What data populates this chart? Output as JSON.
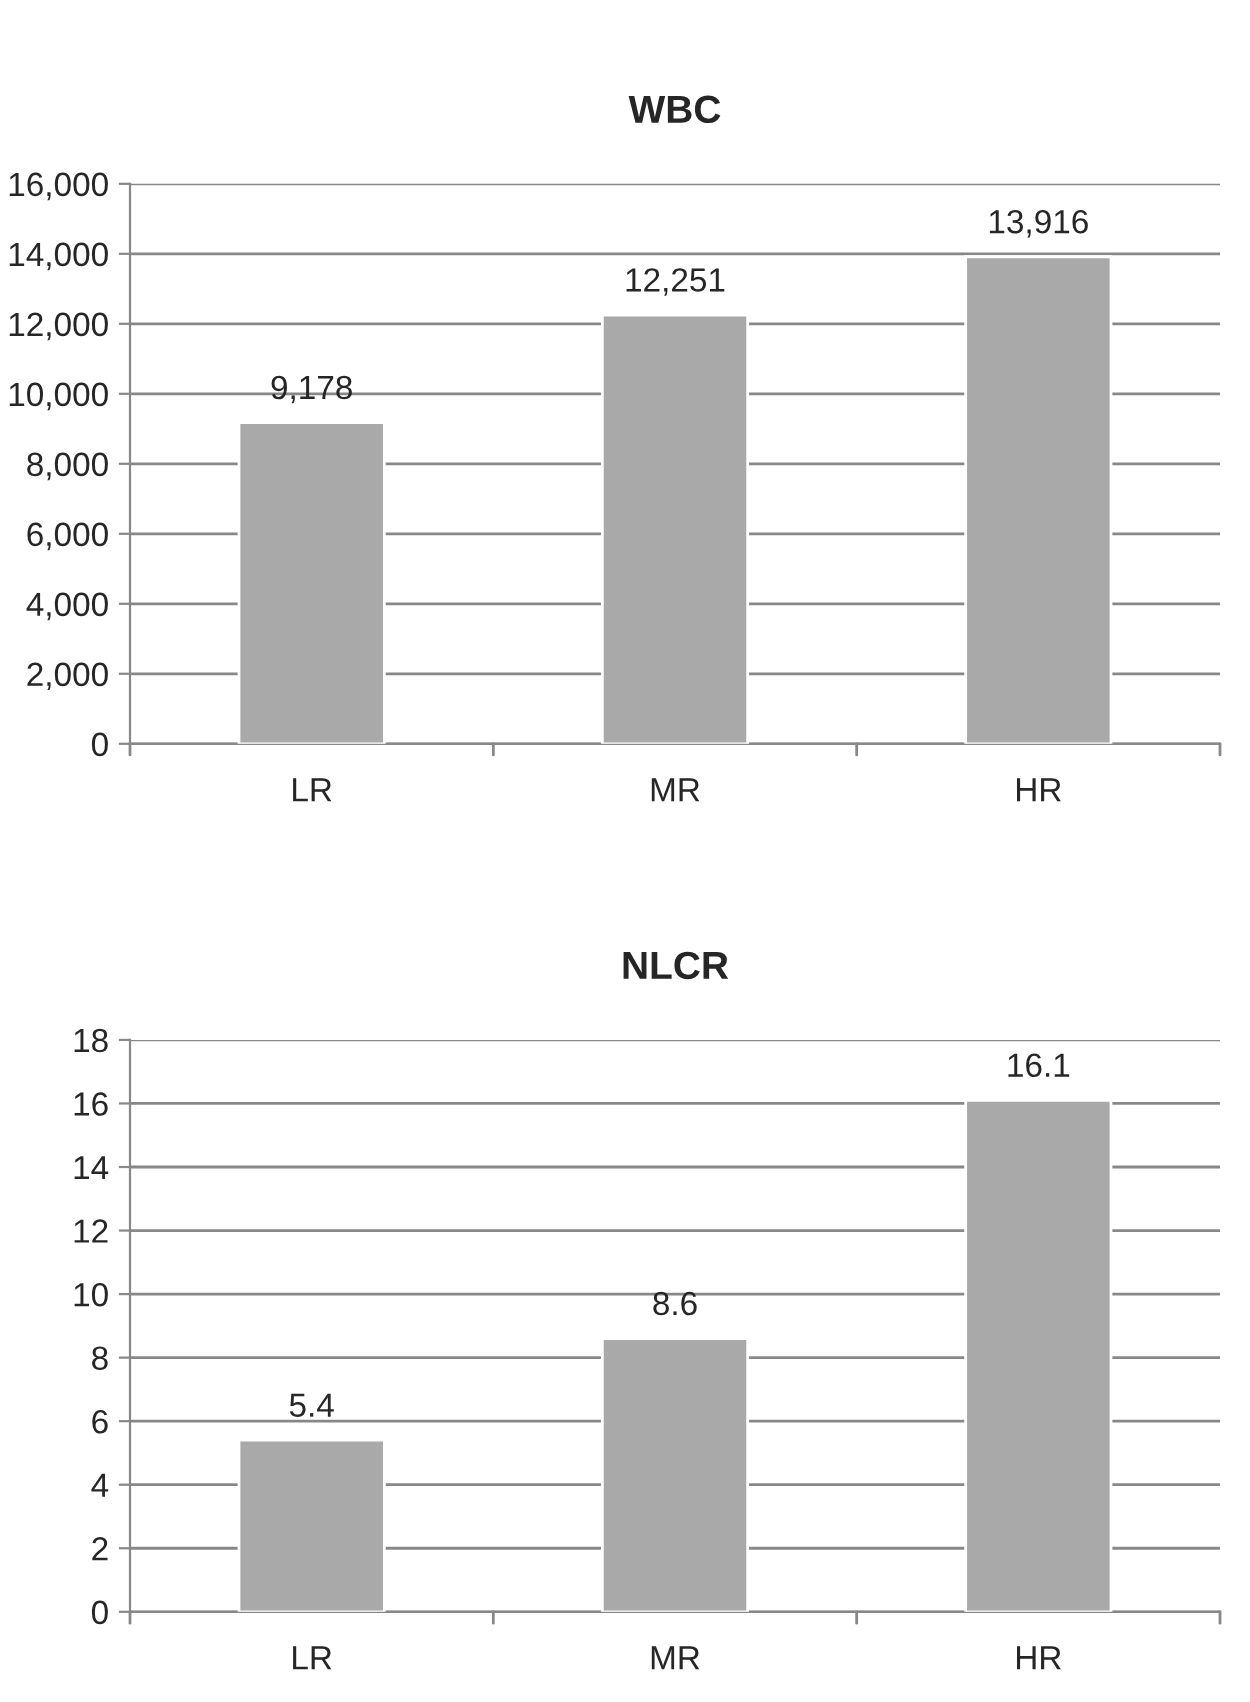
{
  "chart_data": [
    {
      "type": "bar",
      "title": "WBC",
      "categories": [
        "LR",
        "MR",
        "HR"
      ],
      "values": [
        9178,
        12251,
        13916
      ],
      "value_labels": [
        "9,178",
        "12,251",
        "13,916"
      ],
      "color": "#a9a9a9",
      "ylim": [
        0,
        16000
      ],
      "yticks": [
        0,
        {
          "value": 2000,
          "label": "2,000"
        },
        {
          "value": 4000,
          "label": "4,000"
        },
        {
          "value": 6000,
          "label": "6,000"
        },
        {
          "value": 8000,
          "label": "8,000"
        },
        {
          "value": 10000,
          "label": "10,000"
        },
        {
          "value": 12000,
          "label": "12,000"
        },
        {
          "value": 14000,
          "label": "14,000"
        },
        {
          "value": 16000,
          "label": "16,000"
        }
      ],
      "grid": "y",
      "legend": false
    },
    {
      "type": "bar",
      "title": "NLCR",
      "categories": [
        "LR",
        "MR",
        "HR"
      ],
      "values": [
        5.4,
        8.6,
        16.1
      ],
      "data_labels": true,
      "color": "#a9a9a9",
      "ylim": [
        0,
        18
      ],
      "yticks": [
        0,
        2,
        4,
        6,
        8,
        10,
        12,
        14,
        16,
        18
      ],
      "grid": "y",
      "legend": false
    }
  ]
}
